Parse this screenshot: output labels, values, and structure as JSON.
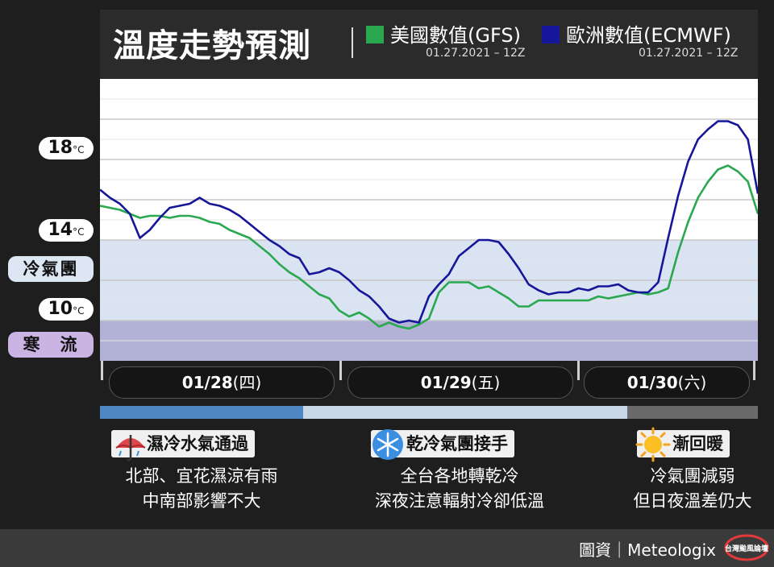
{
  "header": {
    "title": "溫度走勢預測",
    "legend": [
      {
        "name": "美國數值(GFS)",
        "date": "01.27.2021 – 12Z",
        "color": "#2aa84f"
      },
      {
        "name": "歐洲數值(ECMWF)",
        "date": "01.27.2021 – 12Z",
        "color": "#16169a"
      }
    ]
  },
  "left_labels": {
    "t18": {
      "value": "18",
      "unit": "°C"
    },
    "t14": {
      "value": "14",
      "unit": "°C"
    },
    "t10": {
      "value": "10",
      "unit": "°C"
    },
    "cold_air_mass": "冷氣團",
    "cold_surge": "寒　流"
  },
  "days": [
    {
      "date": "01/28",
      "weekday": "(四)"
    },
    {
      "date": "01/29",
      "weekday": "(五)"
    },
    {
      "date": "01/30",
      "weekday": "(六)"
    }
  ],
  "phases": [
    {
      "icon": "umbrella-rain-icon",
      "title": "濕冷水氣通過",
      "lines": [
        "北部、宜花濕涼有雨",
        "中南部影響不大"
      ],
      "bar_color": "#4f87c2"
    },
    {
      "icon": "snowflake-icon",
      "title": "乾冷氣團接手",
      "lines": [
        "全台各地轉乾冷",
        "深夜注意輻射冷卻低溫"
      ],
      "bar_color": "#c9d6e6"
    },
    {
      "icon": "sun-icon",
      "title": "漸回暖",
      "lines": [
        "冷氣團減弱",
        "但日夜溫差仍大"
      ],
      "bar_color": "#6a6a6a"
    }
  ],
  "footer": {
    "credit": "圖資｜Meteologix"
  },
  "chart_data": {
    "type": "line",
    "ylim": [
      8,
      22
    ],
    "y_ticks": [
      10,
      14,
      18
    ],
    "grid": true,
    "bands": [
      {
        "label": "冷氣團",
        "from": 10,
        "to": 14,
        "color": "#d9e3f1"
      },
      {
        "label": "寒　流",
        "from": 8,
        "to": 10,
        "color": "#b2b2d6"
      }
    ],
    "series": [
      {
        "name": "美國數值(GFS)",
        "color": "#2aa84f",
        "values": [
          15.7,
          15.6,
          15.5,
          15.3,
          15.1,
          15.2,
          15.2,
          15.1,
          15.2,
          15.2,
          15.1,
          14.9,
          14.8,
          14.5,
          14.3,
          14.1,
          13.7,
          13.3,
          12.8,
          12.4,
          12.1,
          11.7,
          11.3,
          11.1,
          10.5,
          10.2,
          10.4,
          10.1,
          9.7,
          9.9,
          9.7,
          9.6,
          9.8,
          10.1,
          11.4,
          11.9,
          11.9,
          11.9,
          11.6,
          11.7,
          11.4,
          11.1,
          10.7,
          10.7,
          11.0,
          11.0,
          11.0,
          11.0,
          11.0,
          11.0,
          11.2,
          11.1,
          11.2,
          11.3,
          11.4,
          11.3,
          11.4,
          11.6,
          13.4,
          14.9,
          16.1,
          16.9,
          17.5,
          17.7,
          17.4,
          16.9,
          15.3
        ]
      },
      {
        "name": "歐洲數值(ECMWF)",
        "color": "#16169a",
        "values": [
          16.5,
          16.1,
          15.8,
          15.3,
          14.1,
          14.5,
          15.1,
          15.6,
          15.7,
          15.8,
          16.1,
          15.8,
          15.7,
          15.5,
          15.2,
          14.8,
          14.4,
          14.0,
          13.7,
          13.3,
          13.1,
          12.3,
          12.4,
          12.6,
          12.4,
          12.0,
          11.5,
          11.2,
          10.7,
          10.1,
          9.9,
          10.0,
          9.9,
          11.2,
          11.8,
          12.3,
          13.2,
          13.6,
          14.0,
          14.0,
          13.9,
          13.3,
          12.6,
          11.8,
          11.5,
          11.3,
          11.4,
          11.4,
          11.6,
          11.5,
          11.7,
          11.7,
          11.8,
          11.5,
          11.4,
          11.4,
          11.9,
          14.1,
          16.2,
          17.9,
          19.0,
          19.5,
          19.9,
          19.9,
          19.7,
          19.0,
          16.3
        ]
      }
    ]
  }
}
